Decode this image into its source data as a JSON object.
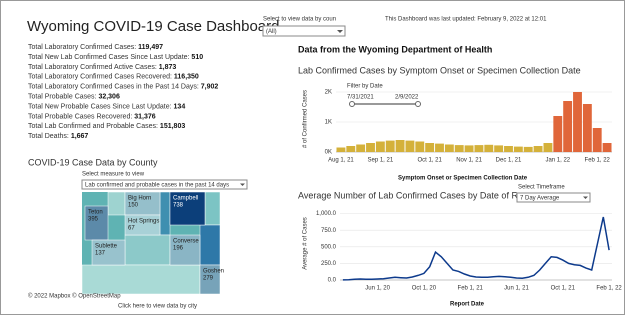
{
  "header": {
    "title": "Wyoming COVID-19 Case Dashboard",
    "filter_label": "Select to view data by coun",
    "filter_value": "(All)",
    "updated": "This Dashboard was last updated: February 9, 2022 at 12:01"
  },
  "stats": [
    {
      "label": "Total Laboratory Confirmed Cases: ",
      "value": "119,497"
    },
    {
      "label": "Total New Lab Confirmed Cases Since Last Update: ",
      "value": "510"
    },
    {
      "label": "Total Laboratory Confirmed Active Cases: ",
      "value": "1,873"
    },
    {
      "label": "Total Laboratory Confirmed Cases Recovered: ",
      "value": "116,350"
    },
    {
      "label": "Total Laboratory Confirmed Cases in the Past 14 Days: ",
      "value": "7,902"
    },
    {
      "label": "Total Probable Cases: ",
      "value": "32,306"
    },
    {
      "label": "Total New Probable Cases Since Last Update: ",
      "value": "134"
    },
    {
      "label": "Total Probable Cases Recovered: ",
      "value": "31,376"
    },
    {
      "label": "Total Lab Confirmed and Probable Cases: ",
      "value": "151,803"
    },
    {
      "label": "Total Deaths: ",
      "value": "1,667"
    }
  ],
  "map": {
    "title": "COVID-19 Case Data by County",
    "select_label": "Select measure to view",
    "select_value": "Lab confirmed and probable cases in the past 14 days",
    "counties": [
      {
        "name": "Teton",
        "value": 395
      },
      {
        "name": "Big Horn",
        "value": 150
      },
      {
        "name": "Hot Springs",
        "value": 67
      },
      {
        "name": "Campbell",
        "value": 738
      },
      {
        "name": "Sublette",
        "value": 137
      },
      {
        "name": "Converse",
        "value": 196
      },
      {
        "name": "Goshen",
        "value": 279
      }
    ],
    "attribution": "© 2022 Mapbox © OpenStreetMap",
    "link": "Click here to view data by city"
  },
  "source_title": "Data from the Wyoming Department of Health",
  "chart_data": [
    {
      "type": "bar",
      "title": "Lab Confirmed Cases by Symptom Onset or Specimen Collection Date",
      "ylabel": "# of Confirmed Cases",
      "xlabel": "Symptom Onset or Specimen Collection Date",
      "filter_title": "Filter by Date",
      "filter_start": "7/31/2021",
      "filter_end": "2/9/2022",
      "categories": [
        "Aug 1, 21",
        null,
        null,
        null,
        "Sep 1, 21",
        null,
        null,
        null,
        null,
        "Oct 1, 21",
        null,
        null,
        null,
        "Nov 1, 21",
        null,
        null,
        null,
        "Dec 1, 21",
        null,
        null,
        null,
        null,
        "Jan 1, 22",
        null,
        null,
        null,
        "Feb 1, 22",
        null
      ],
      "values": [
        150,
        200,
        250,
        300,
        350,
        380,
        400,
        380,
        350,
        300,
        280,
        250,
        230,
        220,
        230,
        240,
        220,
        200,
        180,
        170,
        200,
        300,
        1200,
        1700,
        2000,
        1600,
        800,
        300
      ],
      "colors": [
        "#d4b13a",
        "#d4b13a",
        "#d4b13a",
        "#d4b13a",
        "#d4b13a",
        "#d4b13a",
        "#d4b13a",
        "#d4b13a",
        "#d4b13a",
        "#d4b13a",
        "#d4b13a",
        "#d4b13a",
        "#d4b13a",
        "#d4b13a",
        "#d4b13a",
        "#d4b13a",
        "#d4b13a",
        "#d4b13a",
        "#d4b13a",
        "#d4b13a",
        "#d4b13a",
        "#d4b13a",
        "#e0663a",
        "#e0663a",
        "#e0663a",
        "#e0663a",
        "#e0663a",
        "#e0663a"
      ],
      "ylim": [
        0,
        2200
      ],
      "yticks": [
        {
          "value": 0,
          "label": "0K"
        },
        {
          "value": 1000,
          "label": "1K"
        },
        {
          "value": 2000,
          "label": "2K"
        }
      ],
      "grid": true
    },
    {
      "type": "line",
      "title": "Average Number of Lab Confirmed Cases by Date of Report",
      "ylabel": "Average # of Cases",
      "xlabel": "Report Date",
      "select_label": "Select Timeframe",
      "select_value": "7 Day Average",
      "color": "#0d3a8c",
      "categories": [
        null,
        null,
        null,
        null,
        null,
        null,
        "Jun 1, 20",
        null,
        null,
        null,
        null,
        null,
        null,
        null,
        "Oct 1, 20",
        null,
        null,
        null,
        null,
        null,
        null,
        null,
        "Feb 1, 21",
        null,
        null,
        null,
        null,
        null,
        null,
        null,
        "Jun 1, 21",
        null,
        null,
        null,
        null,
        null,
        null,
        null,
        "Oct 1, 21",
        null,
        null,
        null,
        null,
        null,
        null,
        null,
        "Feb 1, 22"
      ],
      "values": [
        2,
        5,
        10,
        15,
        12,
        10,
        15,
        20,
        30,
        40,
        35,
        30,
        45,
        70,
        100,
        200,
        420,
        350,
        250,
        150,
        130,
        90,
        60,
        45,
        40,
        40,
        50,
        55,
        50,
        40,
        30,
        25,
        40,
        70,
        150,
        250,
        350,
        340,
        300,
        250,
        230,
        220,
        180,
        150,
        550,
        950,
        450
      ],
      "ylim": [
        0,
        1100
      ],
      "yticks": [
        {
          "value": 0,
          "label": "0.0"
        },
        {
          "value": 250,
          "label": "250.0"
        },
        {
          "value": 500,
          "label": "500.0"
        },
        {
          "value": 750,
          "label": "750.0"
        },
        {
          "value": 1000,
          "label": "1,000.0"
        }
      ],
      "grid": true
    }
  ]
}
